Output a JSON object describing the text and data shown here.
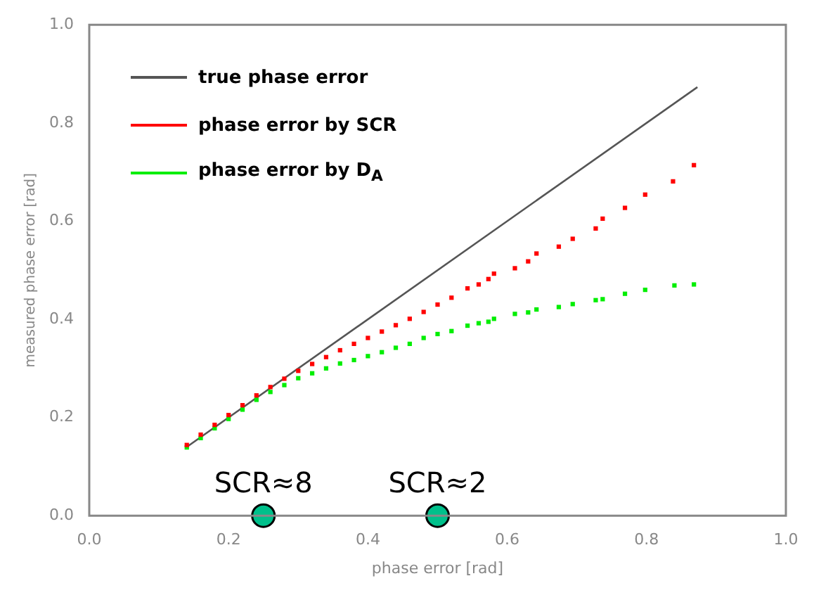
{
  "chart_data": {
    "type": "scatter",
    "xlabel": "phase error [rad]",
    "ylabel": "measured phase error [rad]",
    "xlim": [
      0,
      1
    ],
    "ylim": [
      0,
      1
    ],
    "xticks": [
      {
        "value": 0,
        "label": "0.0"
      },
      {
        "value": 0.2,
        "label": "0.2"
      },
      {
        "value": 0.4,
        "label": "0.4"
      },
      {
        "value": 0.6,
        "label": "0.6"
      },
      {
        "value": 0.8,
        "label": "0.8"
      },
      {
        "value": 1,
        "label": "1.0"
      }
    ],
    "yticks": [
      {
        "value": 0,
        "label": "0.0"
      },
      {
        "value": 0.2,
        "label": "0.2"
      },
      {
        "value": 0.4,
        "label": "0.4"
      },
      {
        "value": 0.6,
        "label": "0.6"
      },
      {
        "value": 0.8,
        "label": "0.8"
      },
      {
        "value": 1,
        "label": "1.0"
      }
    ],
    "grid": false,
    "legend": "top left",
    "series": [
      {
        "name": "true phase error",
        "type": "line",
        "color": "#555555",
        "marker": "none",
        "x": [
          0.14,
          0.873
        ],
        "values": [
          0.14,
          0.873
        ]
      },
      {
        "name": "phase error by SCR",
        "type": "scatter",
        "color": "#ff0000",
        "marker": "square",
        "x": [
          0.14,
          0.16,
          0.18,
          0.2,
          0.22,
          0.24,
          0.26,
          0.28,
          0.3,
          0.32,
          0.34,
          0.36,
          0.38,
          0.4,
          0.42,
          0.44,
          0.46,
          0.48,
          0.5,
          0.52,
          0.543,
          0.559,
          0.573,
          0.581,
          0.611,
          0.63,
          0.642,
          0.674,
          0.694,
          0.727,
          0.737,
          0.769,
          0.798,
          0.838,
          0.868
        ],
        "values": [
          0.144,
          0.165,
          0.185,
          0.205,
          0.225,
          0.245,
          0.262,
          0.279,
          0.295,
          0.309,
          0.323,
          0.337,
          0.35,
          0.362,
          0.375,
          0.388,
          0.401,
          0.415,
          0.43,
          0.444,
          0.463,
          0.471,
          0.482,
          0.493,
          0.504,
          0.518,
          0.534,
          0.548,
          0.564,
          0.585,
          0.605,
          0.627,
          0.654,
          0.681,
          0.714
        ]
      },
      {
        "name": "phase error by D$_{A}$",
        "type": "scatter",
        "color": "#00ee00",
        "marker": "square",
        "x": [
          0.14,
          0.16,
          0.18,
          0.2,
          0.22,
          0.24,
          0.26,
          0.28,
          0.3,
          0.32,
          0.34,
          0.36,
          0.38,
          0.4,
          0.42,
          0.44,
          0.46,
          0.48,
          0.5,
          0.52,
          0.543,
          0.559,
          0.573,
          0.581,
          0.611,
          0.63,
          0.642,
          0.674,
          0.694,
          0.727,
          0.737,
          0.769,
          0.798,
          0.84,
          0.868
        ],
        "values": [
          0.139,
          0.158,
          0.178,
          0.197,
          0.216,
          0.236,
          0.252,
          0.266,
          0.28,
          0.29,
          0.3,
          0.31,
          0.317,
          0.325,
          0.333,
          0.342,
          0.35,
          0.362,
          0.37,
          0.376,
          0.387,
          0.392,
          0.395,
          0.401,
          0.411,
          0.414,
          0.42,
          0.425,
          0.431,
          0.439,
          0.441,
          0.452,
          0.46,
          0.469,
          0.471
        ]
      },
      {
        "type": "scatter",
        "color": "#00c08b",
        "marker": "circle",
        "x": [
          0.25,
          0.5
        ],
        "values": [
          0,
          0
        ]
      }
    ],
    "annotations": [
      {
        "text": "SCR≈8",
        "x": 0.25,
        "y": 0
      },
      {
        "text": "SCR≈2",
        "x": 0.5,
        "y": 0
      }
    ]
  }
}
